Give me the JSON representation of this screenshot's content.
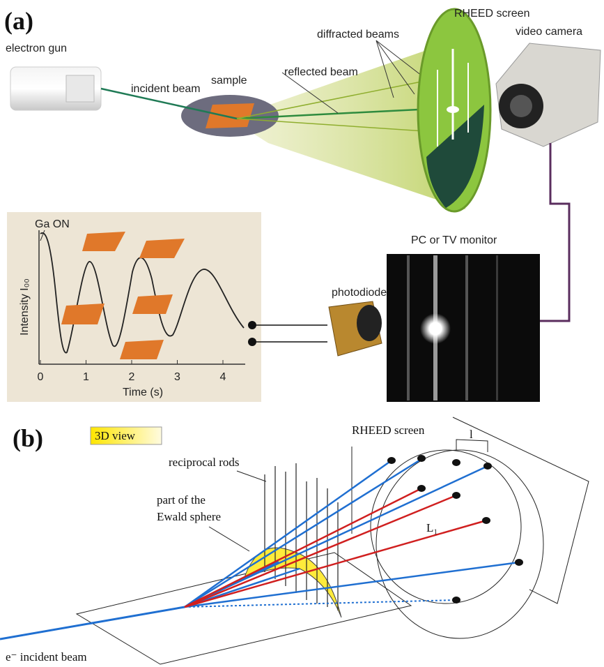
{
  "panel_a": {
    "label": "(a)",
    "electron_gun": "electron gun",
    "incident_beam": "incident beam",
    "sample": "sample",
    "diffracted_beams": "diffracted beams",
    "reflected_beam": "reflected beam",
    "rheed_screen": "RHEED screen",
    "video_camera": "video camera",
    "plot": {
      "annotation": "Ga ON",
      "y_label": "Intensity I₀₀",
      "x_label": "Time (s)",
      "xticks": [
        0,
        1,
        2,
        3,
        4
      ]
    },
    "photodiode": "photodiode",
    "monitor": "PC or TV monitor"
  },
  "panel_b": {
    "label": "(b)",
    "view": "3D view",
    "rheed_screen": "RHEED screen",
    "reciprocal_rods": "reciprocal rods",
    "ewald_line1": "part of the",
    "ewald_line2": "Ewald sphere",
    "spacing": "l",
    "distance": "L₁",
    "incident_beam": "e⁻ incident beam"
  }
}
